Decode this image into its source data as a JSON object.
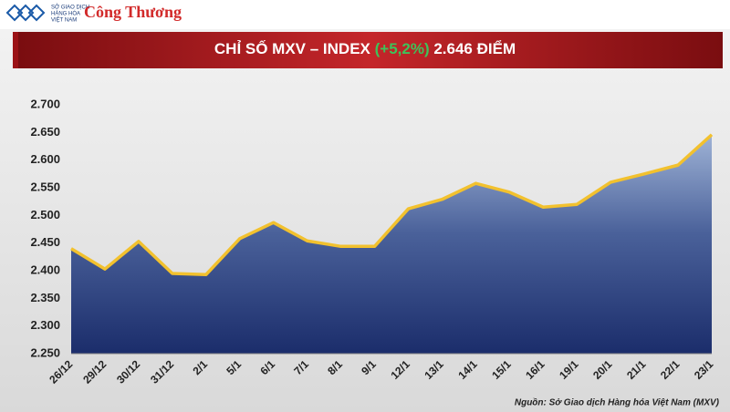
{
  "header": {
    "logo_lines": [
      "SỞ GIAO DỊCH",
      "HÀNG HÓA",
      "VIỆT NAM"
    ],
    "brand": "Công Thương"
  },
  "chart_data": {
    "type": "area",
    "title": "CHỈ SỐ MXV – INDEX",
    "title_change": "(+5,2%)",
    "title_value": "2.646 ĐIỂM",
    "categories": [
      "26/12",
      "29/12",
      "30/12",
      "31/12",
      "2/1",
      "5/1",
      "6/1",
      "7/1",
      "8/1",
      "9/1",
      "12/1",
      "13/1",
      "14/1",
      "15/1",
      "16/1",
      "19/1",
      "20/1",
      "21/1",
      "22/1",
      "23/1"
    ],
    "values": [
      2440,
      2403,
      2453,
      2395,
      2393,
      2458,
      2487,
      2454,
      2444,
      2444,
      2512,
      2529,
      2558,
      2542,
      2515,
      2520,
      2560,
      2575,
      2591,
      2646
    ],
    "color": "#f2c12e",
    "ylim": [
      2250,
      2700
    ],
    "yticks": [
      {
        "value": 2250,
        "label": "2.250"
      },
      {
        "value": 2300,
        "label": "2.300"
      },
      {
        "value": 2350,
        "label": "2.350"
      },
      {
        "value": 2400,
        "label": "2.400"
      },
      {
        "value": 2450,
        "label": "2.450"
      },
      {
        "value": 2500,
        "label": "2.500"
      },
      {
        "value": 2550,
        "label": "2.550"
      },
      {
        "value": 2600,
        "label": "2.600"
      },
      {
        "value": 2650,
        "label": "2.650"
      },
      {
        "value": 2700,
        "label": "2.700"
      }
    ],
    "grid": false,
    "source": "Nguồn: Sở Giao dịch Hàng hóa Việt Nam (MXV)"
  }
}
